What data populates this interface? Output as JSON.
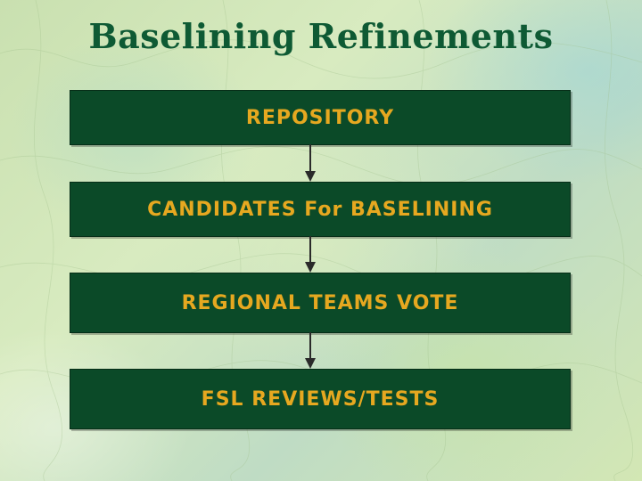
{
  "slide": {
    "title": "Baselining Refinements",
    "steps": [
      {
        "label": "REPOSITORY"
      },
      {
        "label": "CANDIDATES For BASELINING"
      },
      {
        "label": "REGIONAL TEAMS VOTE"
      },
      {
        "label": "FSL REVIEWS/TESTS"
      }
    ]
  },
  "colors": {
    "box_fill": "#0b4a28",
    "box_text": "#e6a820",
    "title_text": "#0e5a34",
    "arrow": "#2a2a2a"
  }
}
